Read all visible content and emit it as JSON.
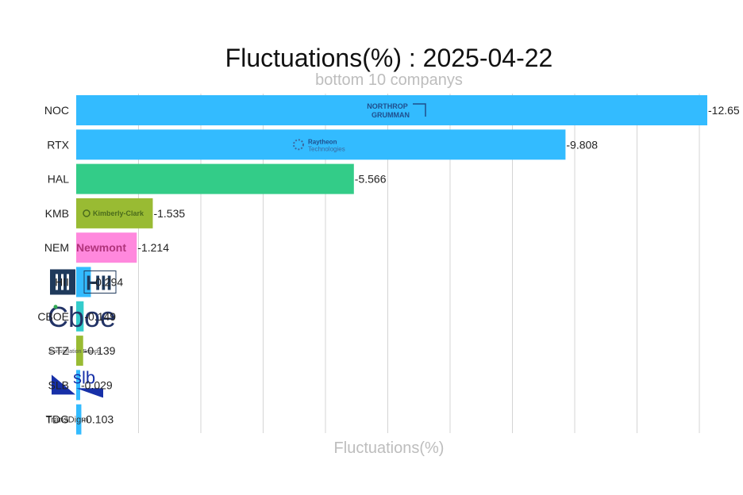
{
  "chart_data": {
    "type": "bar",
    "orientation": "horizontal",
    "title": "Fluctuations(%) : 2025-04-22",
    "subtitle": "bottom 10 companys",
    "xlabel": "Fluctuations(%)",
    "ylabel": "",
    "grid": true,
    "legend": "none",
    "xlim": [
      0,
      12.65
    ],
    "categories": [
      "NOC",
      "RTX",
      "HAL",
      "KMB",
      "NEM",
      "HII",
      "CBOE",
      "STZ",
      "SLB",
      "TDG"
    ],
    "values": [
      -12.65,
      -9.808,
      -5.566,
      -1.535,
      -1.214,
      -0.294,
      -0.149,
      -0.139,
      -0.029,
      -0.103
    ],
    "value_labels": [
      "-12.65",
      "-9.808",
      "-5.566",
      "-1.535",
      "-1.214",
      "-0.294",
      "-0.149",
      "-0.139",
      "-0.029",
      "-0.103"
    ],
    "colors": [
      "#33bbff",
      "#33bbff",
      "#33cc88",
      "#99bb33",
      "#ff88dd",
      "#33bbff",
      "#33cccc",
      "#99bb33",
      "#33bbff",
      "#33bbff"
    ],
    "logos": [
      "Northrop Grumman",
      "Raytheon Technologies",
      "",
      "Kimberly-Clark",
      "Newmont",
      "HII",
      "Cboe",
      "Constellation Brands",
      "slb",
      "TransDigm"
    ]
  }
}
